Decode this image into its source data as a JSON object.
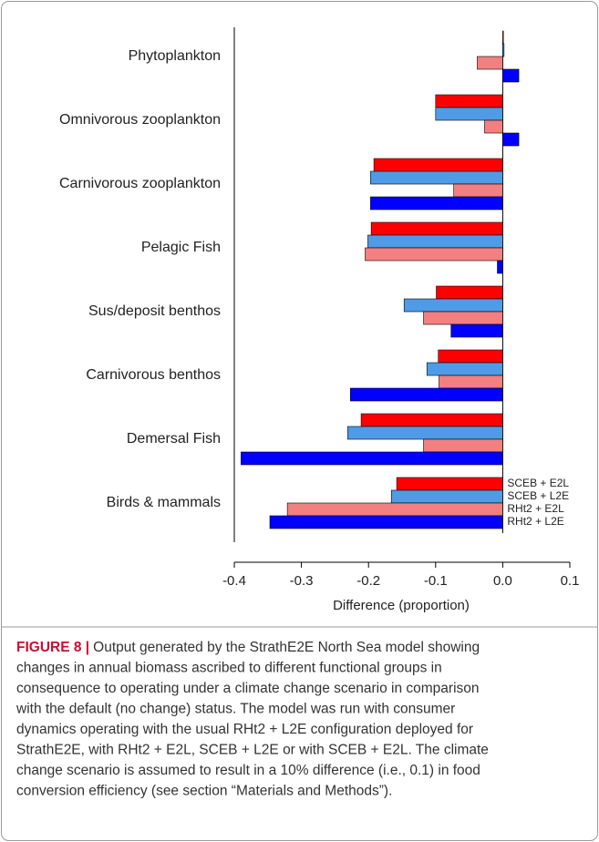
{
  "chart_data": {
    "type": "hbar",
    "categories": [
      "Phytoplankton",
      "Omnivorous zooplankton",
      "Carnivorous zooplankton",
      "Pelagic Fish",
      "Sus/deposit benthos",
      "Carnivorous benthos",
      "Demersal Fish",
      "Birds &  mammals"
    ],
    "series": [
      {
        "name": "SCEB + E2L",
        "color": "#ff0000",
        "values": [
          0.001,
          -0.1,
          -0.192,
          -0.196,
          -0.099,
          -0.096,
          -0.211,
          -0.158
        ]
      },
      {
        "name": "SCEB + L2E",
        "color": "#4f9be6",
        "values": [
          0.002,
          -0.1,
          -0.197,
          -0.201,
          -0.147,
          -0.113,
          -0.231,
          -0.166
        ]
      },
      {
        "name": "RHt2 + E2L",
        "color": "#f28080",
        "values": [
          -0.038,
          -0.027,
          -0.073,
          -0.205,
          -0.118,
          -0.095,
          -0.118,
          -0.321
        ]
      },
      {
        "name": "RHt2 + L2E",
        "color": "#0000ff",
        "values": [
          0.024,
          0.024,
          -0.197,
          -0.008,
          -0.077,
          -0.227,
          -0.39,
          -0.347
        ]
      }
    ],
    "xlabel": "Difference (proportion)",
    "xlim": [
      -0.4,
      0.1
    ],
    "xticks": [
      -0.4,
      -0.3,
      -0.2,
      -0.1,
      {
        "value": 0,
        "label": "0.0"
      },
      0.1
    ]
  },
  "caption": {
    "label": "FIGURE 8 |",
    "lines": [
      "Output generated by the StrathE2E North Sea model showing",
      "changes in annual biomass ascribed to different functional groups in",
      "consequence to operating under a climate change scenario in comparison",
      "with the default (no change) status. The model was run with consumer",
      "dynamics operating with the usual RHt2 + L2E configuration deployed for",
      "StrathE2E, with RHt2 + E2L, SCEB + L2E or with SCEB + E2L. The climate",
      "change scenario is assumed to result in a 10% difference (i.e., 0.1) in food",
      "conversion efficiency (see section “Materials and Methods”)."
    ]
  }
}
